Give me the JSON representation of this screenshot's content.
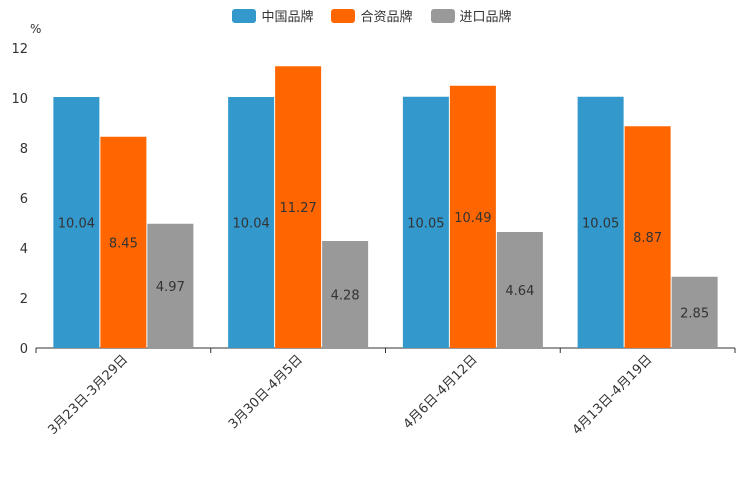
{
  "chart_data": {
    "type": "bar",
    "unit": "%",
    "categories": [
      "3月23日-3月29日",
      "3月30日-4月5日",
      "4月6日-4月12日",
      "4月13日-4月19日"
    ],
    "series": [
      {
        "name": "中国品牌",
        "color": "#3399cc",
        "values": [
          10.04,
          10.04,
          10.05,
          10.05
        ]
      },
      {
        "name": "合资品牌",
        "color": "#ff6600",
        "values": [
          8.45,
          11.27,
          10.49,
          8.87
        ]
      },
      {
        "name": "进口品牌",
        "color": "#999999",
        "values": [
          4.97,
          4.28,
          4.64,
          2.85
        ]
      }
    ],
    "ylim": [
      0,
      12
    ],
    "yticks": [
      0,
      2,
      4,
      6,
      8,
      10,
      12
    ],
    "legend_position": "top-center"
  }
}
